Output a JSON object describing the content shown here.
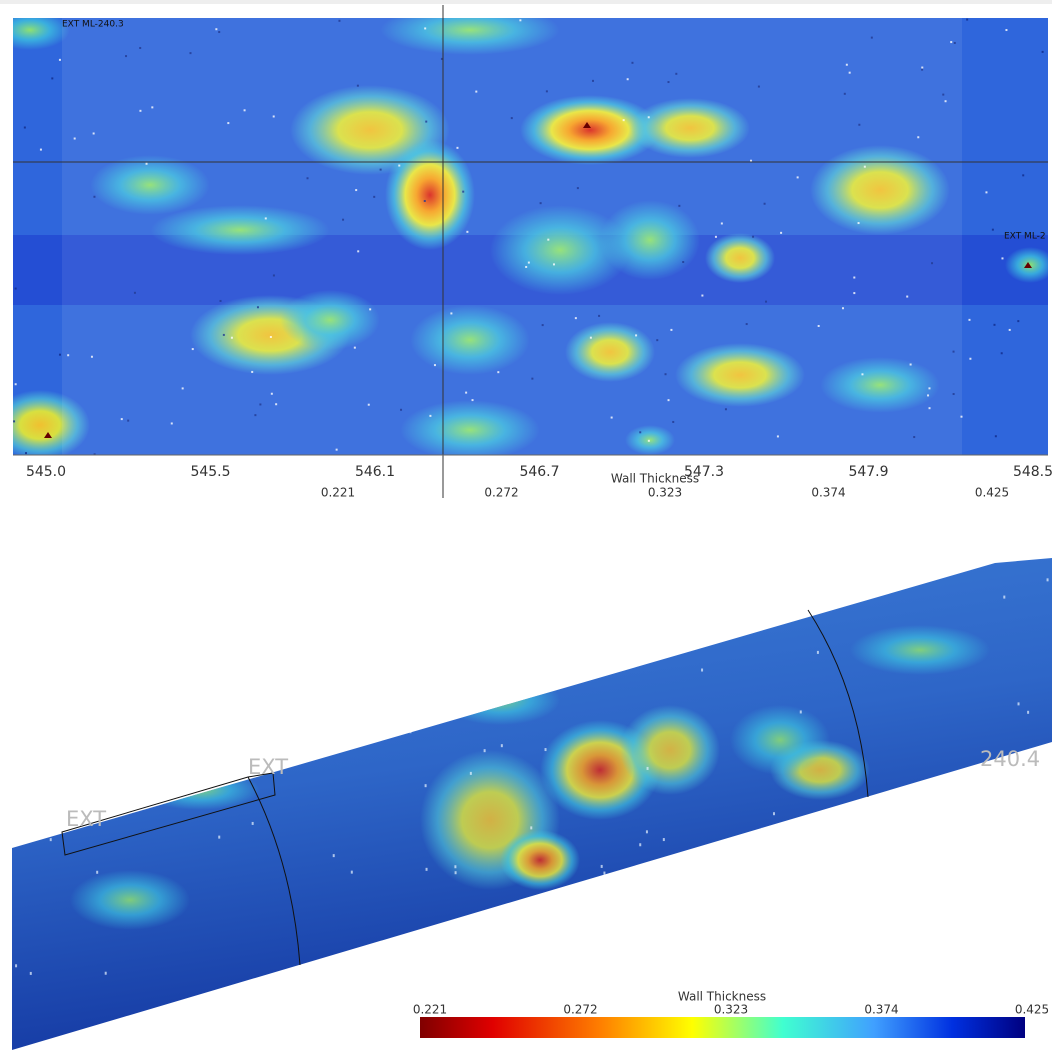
{
  "top_view": {
    "markers": [
      "EXT ML-240.3",
      "EXT ML-2"
    ],
    "axis_labels": [
      "545.0",
      "545.5",
      "546.1",
      "546.7",
      "547.3",
      "547.9",
      "548.5"
    ],
    "legend_title": "Wall Thickness",
    "legend_ticks": [
      "0.221",
      "0.272",
      "0.323",
      "0.374",
      "0.425"
    ]
  },
  "pipe_view": {
    "labels": [
      "EXT",
      "EXT",
      "240.4"
    ],
    "legend_title": "Wall Thickness",
    "legend_ticks": [
      "0.221",
      "0.272",
      "0.323",
      "0.374",
      "0.425"
    ]
  }
}
